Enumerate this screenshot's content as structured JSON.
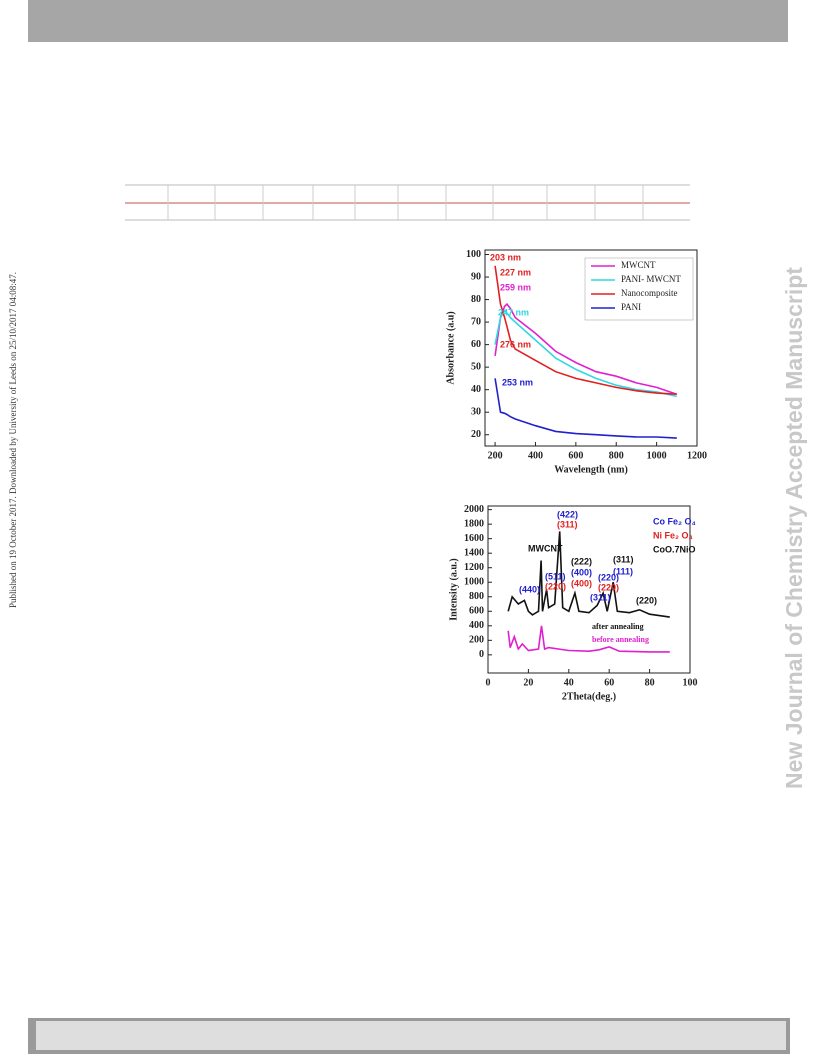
{
  "side_note": "Published on 19 October 2017. Downloaded by University of Leeds on 25/10/2017 04:08:47.",
  "watermark": "New Journal of Chemistry Accepted Manuscript",
  "chart_data": [
    {
      "type": "line",
      "x_label": "Wavelength (nm)",
      "y_label": "Absorbance (a.u)",
      "x": [
        200,
        227,
        247,
        259,
        276,
        300,
        400,
        500,
        600,
        700,
        800,
        900,
        1000,
        1100
      ],
      "series": [
        {
          "name": "MWCNT",
          "color": "#e020d0",
          "values": [
            55,
            72,
            77,
            78,
            76,
            72,
            65,
            57,
            52,
            48,
            46,
            43,
            41,
            38
          ]
        },
        {
          "name": "PANI- MWCNT",
          "color": "#30d8e0",
          "values": [
            60,
            72,
            75,
            74,
            72,
            70,
            62,
            54,
            49,
            45,
            42,
            40,
            39,
            37
          ]
        },
        {
          "name": "Nanocomposite",
          "color": "#e02020",
          "values": [
            95,
            78,
            72,
            68,
            62,
            58,
            53,
            48,
            45,
            43,
            41,
            39.5,
            38.5,
            38
          ]
        },
        {
          "name": "PANI",
          "color": "#2020d0",
          "values": [
            45,
            30,
            29.5,
            29,
            28,
            27,
            24,
            21.5,
            20.5,
            20,
            19.5,
            19,
            19,
            18.5
          ]
        }
      ],
      "xlim": [
        150,
        1200
      ],
      "xticks": [
        200,
        400,
        600,
        800,
        1000,
        1200
      ],
      "ylim": [
        15,
        102
      ],
      "yticks": [
        20,
        30,
        40,
        50,
        60,
        70,
        80,
        90,
        100
      ],
      "annotations": [
        {
          "text": "203 nm",
          "color": "#e02020"
        },
        {
          "text": "227 nm",
          "color": "#e02020"
        },
        {
          "text": "259 nm",
          "color": "#e020d0"
        },
        {
          "text": "247 nm",
          "color": "#30d8e0"
        },
        {
          "text": "276 nm",
          "color": "#e02020"
        },
        {
          "text": "253 nm",
          "color": "#2020d0"
        }
      ]
    },
    {
      "type": "line",
      "x_label": "2Theta(deg.)",
      "y_label": "Intensity (a.u.)",
      "series": [
        {
          "name": "after annealing",
          "color": "#111111",
          "x": [
            10,
            12,
            15,
            18,
            20,
            22,
            25,
            26.3,
            27,
            29,
            30,
            33,
            35.5,
            37,
            40,
            43,
            45,
            50,
            54,
            57,
            59,
            62,
            64,
            70,
            75,
            80,
            90
          ],
          "values": [
            600,
            800,
            700,
            750,
            600,
            550,
            600,
            1300,
            600,
            900,
            650,
            700,
            1700,
            650,
            600,
            850,
            600,
            580,
            680,
            850,
            600,
            1000,
            600,
            580,
            620,
            560,
            520
          ]
        },
        {
          "name": "before annealing",
          "color": "#e020d0",
          "x": [
            10,
            11,
            13,
            15,
            17,
            20,
            25,
            26.5,
            28,
            30,
            40,
            50,
            55,
            60,
            65,
            80,
            90
          ],
          "values": [
            330,
            100,
            250,
            80,
            150,
            60,
            80,
            400,
            80,
            100,
            60,
            50,
            70,
            110,
            50,
            40,
            40
          ]
        }
      ],
      "xlim": [
        0,
        100
      ],
      "xticks": [
        0,
        20,
        40,
        60,
        80,
        100
      ],
      "ylim": [
        -250,
        2050
      ],
      "yticks": [
        0,
        200,
        400,
        600,
        800,
        1000,
        1200,
        1400,
        1600,
        1800,
        2000
      ],
      "annotations": [
        {
          "text": "Co Fe₂ O₄",
          "color": "#2020d0"
        },
        {
          "text": "Ni Fe₂ O₄",
          "color": "#e02020"
        },
        {
          "text": "CoO.7NiO",
          "color": "#111111"
        },
        {
          "text": "(422)",
          "color": "#2020d0"
        },
        {
          "text": "(311)",
          "color": "#e02020"
        },
        {
          "text": "MWCNT",
          "color": "#111111"
        },
        {
          "text": "(222)",
          "color": "#111111"
        },
        {
          "text": "(400)",
          "color": "#2020d0"
        },
        {
          "text": "(400)",
          "color": "#e02020"
        },
        {
          "text": "(511)",
          "color": "#2020d0"
        },
        {
          "text": "(220)",
          "color": "#e02020"
        },
        {
          "text": "(440)",
          "color": "#2020d0"
        },
        {
          "text": "(311)",
          "color": "#111111"
        },
        {
          "text": "(111)",
          "color": "#2020d0"
        },
        {
          "text": "(220)",
          "color": "#2020d0"
        },
        {
          "text": "(220)",
          "color": "#e02020"
        },
        {
          "text": "(311)",
          "color": "#2020d0"
        },
        {
          "text": "(220)",
          "color": "#111111"
        }
      ]
    }
  ]
}
